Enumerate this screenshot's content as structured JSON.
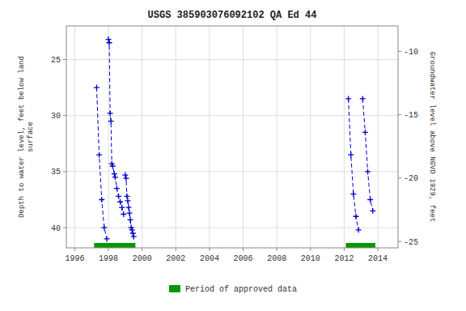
{
  "chart_data": {
    "type": "line",
    "title": "USGS 385903076092102 QA Ed  44",
    "ylabel": "Depth to water level, feet below land\nsurface",
    "y2label": "Groundwater level above NGVD 1929, feet",
    "xlim": [
      1995.5,
      2015.2
    ],
    "xticks": [
      1996,
      1998,
      2000,
      2002,
      2004,
      2006,
      2008,
      2010,
      2012,
      2014
    ],
    "ylim": [
      41.8,
      22.0
    ],
    "yticks": [
      25,
      30,
      35,
      40
    ],
    "y2lim": [
      -25.5,
      -8.0
    ],
    "y2ticks": [
      -10,
      -15,
      -20,
      -25
    ],
    "grid": true,
    "legend": "bottom",
    "series": [
      {
        "color": "#0000cc",
        "marker": "plus",
        "line_style": "dashed",
        "x": [
          1997.3,
          1997.45,
          1997.6,
          1997.75,
          1997.9
        ],
        "values": [
          27.5,
          33.5,
          37.5,
          40.0,
          41.0
        ]
      },
      {
        "color": "#0000cc",
        "marker": "plus",
        "line_style": "dashed",
        "x": [
          1998.0,
          1998.05,
          1998.1,
          1998.15,
          1998.2,
          1998.25,
          1998.35,
          1998.4,
          1998.5,
          1998.6,
          1998.7,
          1998.8,
          1998.9
        ],
        "values": [
          23.2,
          23.5,
          29.8,
          30.5,
          34.3,
          34.5,
          35.2,
          35.5,
          36.5,
          37.2,
          37.7,
          38.2,
          38.8
        ]
      },
      {
        "color": "#0000cc",
        "marker": "plus",
        "line_style": "dashed",
        "x": [
          1999.0,
          1999.05,
          1999.1,
          1999.15,
          1999.2,
          1999.25,
          1999.3,
          1999.35,
          1999.4,
          1999.45,
          1999.5
        ],
        "values": [
          35.3,
          35.6,
          37.2,
          37.6,
          38.2,
          38.7,
          39.3,
          40.0,
          40.2,
          40.5,
          40.8
        ]
      },
      {
        "color": "#0000cc",
        "marker": "plus",
        "line_style": "dashed",
        "x": [
          2012.25,
          2012.4,
          2012.55,
          2012.7,
          2012.85
        ],
        "values": [
          28.5,
          33.5,
          37.0,
          39.0,
          40.2
        ]
      },
      {
        "color": "#0000cc",
        "marker": "plus",
        "line_style": "dashed",
        "x": [
          2013.1,
          2013.25,
          2013.4,
          2013.55,
          2013.7
        ],
        "values": [
          28.5,
          31.5,
          35.0,
          37.5,
          38.5
        ]
      }
    ],
    "bands": {
      "name": "Period of approved data",
      "color": "#009900",
      "ranges": [
        [
          1997.15,
          1999.6
        ],
        [
          2012.1,
          2013.85
        ]
      ]
    }
  }
}
